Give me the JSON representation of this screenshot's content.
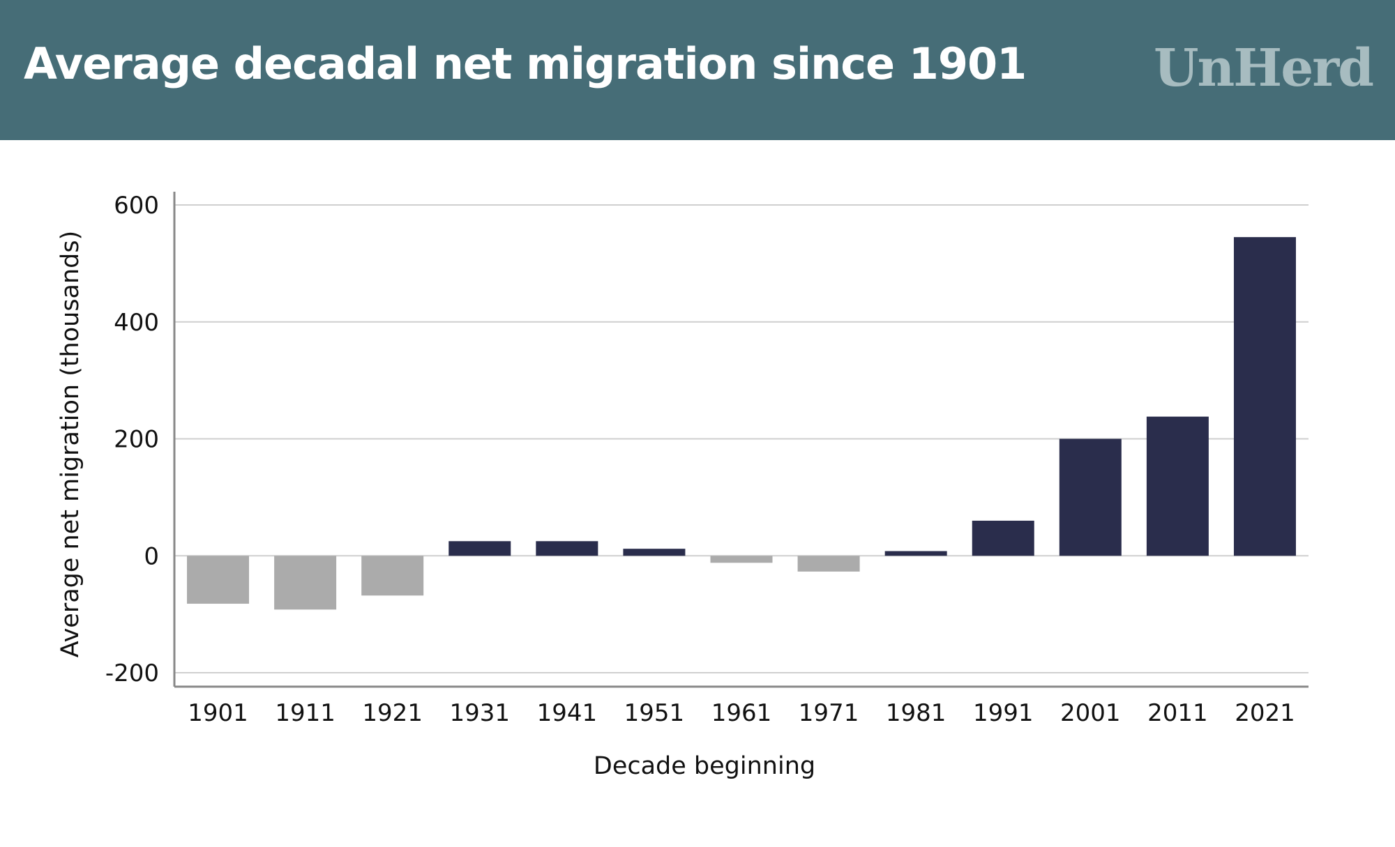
{
  "header": {
    "title": "Average decadal net migration since 1901",
    "brand": "UnHerd"
  },
  "colors": {
    "banner": "#466d77",
    "positive_bar": "#2a2d4c",
    "negative_bar": "#ababab",
    "brand_text": "#a7bcc0"
  },
  "chart_data": {
    "type": "bar",
    "title": "Average decadal net migration since 1901",
    "xlabel": "Decade beginning",
    "ylabel": "Average net migration (thousands)",
    "ylim": [
      -200,
      600
    ],
    "yticks": [
      -200,
      0,
      200,
      400,
      600
    ],
    "grid": true,
    "categories": [
      "1901",
      "1911",
      "1921",
      "1931",
      "1941",
      "1951",
      "1961",
      "1971",
      "1981",
      "1991",
      "2001",
      "2011",
      "2021"
    ],
    "values": [
      -82,
      -92,
      -68,
      25,
      25,
      12,
      -12,
      -27,
      8,
      60,
      200,
      238,
      545
    ]
  }
}
